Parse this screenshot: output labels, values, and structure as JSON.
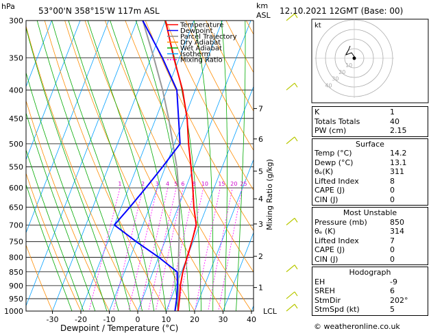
{
  "header": {
    "hpa_label": "hPa",
    "location": "53°00'N  358°15'W  117m  ASL",
    "km_label": "km",
    "asl_label": "ASL",
    "datetime": "12.10.2021  12GMT  (Base: 00)"
  },
  "legend": [
    {
      "label": "Temperature",
      "color": "#ff0000",
      "dash": ""
    },
    {
      "label": "Dewpoint",
      "color": "#0000ff",
      "dash": ""
    },
    {
      "label": "Parcel Trajectory",
      "color": "#888888",
      "dash": ""
    },
    {
      "label": "Dry Adiabat",
      "color": "#ff8c00",
      "dash": ""
    },
    {
      "label": "Wet Adiabat",
      "color": "#00aa00",
      "dash": ""
    },
    {
      "label": "Isotherm",
      "color": "#00a0ff",
      "dash": ""
    },
    {
      "label": "Mixing Ratio",
      "color": "#ff00ff",
      "dash": "2,2"
    }
  ],
  "chart_data": {
    "type": "line",
    "xlabel": "Dewpoint / Temperature (°C)",
    "ylabel": "Mixing Ratio (g/kg)",
    "x_ticks": [
      -30,
      -20,
      -10,
      0,
      10,
      20,
      30,
      40
    ],
    "xlim": [
      -40,
      40
    ],
    "pressure_levels": [
      300,
      350,
      400,
      450,
      500,
      550,
      600,
      650,
      700,
      750,
      800,
      850,
      900,
      950,
      1000
    ],
    "ylim_hpa": [
      1000,
      300
    ],
    "km_ticks": [
      {
        "label": "1",
        "p": 907
      },
      {
        "label": "2",
        "p": 797
      },
      {
        "label": "3",
        "p": 697
      },
      {
        "label": "4",
        "p": 628
      },
      {
        "label": "5",
        "p": 560
      },
      {
        "label": "6",
        "p": 490
      },
      {
        "label": "7",
        "p": 432
      }
    ],
    "lcl": {
      "label": "LCL",
      "p": 1000
    },
    "mixing_ratio_labels": [
      "1",
      "2",
      "3",
      "4",
      "5",
      "6",
      "8",
      "10",
      "15",
      "20",
      "25"
    ],
    "mixing_ratio_values": [
      1,
      2,
      3,
      4,
      5,
      6,
      8,
      10,
      15,
      20,
      25
    ],
    "series": [
      {
        "name": "Temperature",
        "color": "#ff0000",
        "points": [
          [
            14.2,
            1000
          ],
          [
            13,
            950
          ],
          [
            11.5,
            900
          ],
          [
            10.5,
            850
          ],
          [
            10,
            800
          ],
          [
            9.5,
            750
          ],
          [
            8.8,
            700
          ],
          [
            5.5,
            650
          ],
          [
            2.5,
            600
          ],
          [
            -1,
            550
          ],
          [
            -5,
            500
          ],
          [
            -9,
            450
          ],
          [
            -14.5,
            400
          ],
          [
            -22,
            350
          ],
          [
            -30,
            300
          ]
        ]
      },
      {
        "name": "Dewpoint",
        "color": "#0000ff",
        "points": [
          [
            13.1,
            1000
          ],
          [
            12,
            950
          ],
          [
            10.5,
            900
          ],
          [
            8.5,
            850
          ],
          [
            0,
            800
          ],
          [
            -10,
            750
          ],
          [
            -20,
            700
          ],
          [
            -17,
            650
          ],
          [
            -14,
            600
          ],
          [
            -11,
            550
          ],
          [
            -8,
            500
          ],
          [
            -12,
            450
          ],
          [
            -16.5,
            400
          ],
          [
            -26,
            350
          ],
          [
            -38,
            300
          ]
        ]
      },
      {
        "name": "Parcel Trajectory",
        "color": "#999999",
        "points": [
          [
            14.2,
            1000
          ],
          [
            12.5,
            950
          ],
          [
            10.8,
            900
          ],
          [
            9,
            850
          ],
          [
            7,
            800
          ],
          [
            5,
            750
          ],
          [
            2.8,
            700
          ],
          [
            0.5,
            650
          ],
          [
            -2.5,
            600
          ],
          [
            -6,
            550
          ],
          [
            -10.5,
            500
          ],
          [
            -15.5,
            450
          ],
          [
            -21.5,
            400
          ],
          [
            -29,
            350
          ],
          [
            -38,
            300
          ]
        ]
      }
    ],
    "wind_barbs_p": [
      1000,
      950,
      850,
      700,
      500,
      400,
      300
    ]
  },
  "hodograph": {
    "label": "kt",
    "rings": [
      "10",
      "20",
      "30",
      "40"
    ]
  },
  "indices": [
    {
      "label": "K",
      "value": "1"
    },
    {
      "label": "Totals Totals",
      "value": "40"
    },
    {
      "label": "PW (cm)",
      "value": "2.15"
    }
  ],
  "surface": {
    "title": "Surface",
    "rows": [
      {
        "label": "Temp (°C)",
        "value": "14.2"
      },
      {
        "label": "Dewp (°C)",
        "value": "13.1"
      },
      {
        "label": "θₑ(K)",
        "value": "311"
      },
      {
        "label": "Lifted Index",
        "value": "8"
      },
      {
        "label": "CAPE (J)",
        "value": "0"
      },
      {
        "label": "CIN (J)",
        "value": "0"
      }
    ]
  },
  "most_unstable": {
    "title": "Most Unstable",
    "rows": [
      {
        "label": "Pressure (mb)",
        "value": "850"
      },
      {
        "label": "θₑ (K)",
        "value": "314"
      },
      {
        "label": "Lifted Index",
        "value": "7"
      },
      {
        "label": "CAPE (J)",
        "value": "0"
      },
      {
        "label": "CIN (J)",
        "value": "0"
      }
    ]
  },
  "hodograph_table": {
    "title": "Hodograph",
    "rows": [
      {
        "label": "EH",
        "value": "-9"
      },
      {
        "label": "SREH",
        "value": "6"
      },
      {
        "label": "StmDir",
        "value": "202°"
      },
      {
        "label": "StmSpd (kt)",
        "value": "5"
      }
    ]
  },
  "footer": "© weatheronline.co.uk"
}
